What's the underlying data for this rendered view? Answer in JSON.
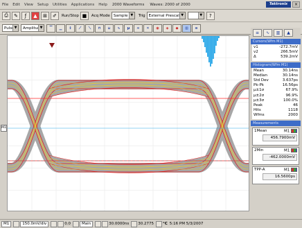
{
  "menu": {
    "items": [
      "File",
      "Edit",
      "View",
      "Setup",
      "Utilities",
      "Applications",
      "Help"
    ],
    "status": "2000 Waveforms",
    "status2": "Waves: 2000 of 2000",
    "brand": "Tektronix"
  },
  "toolbar": {
    "run_stop_label": "Run/Stop",
    "acq_mode_label": "Acq Mode",
    "acq_mode_value": "Sample",
    "trig_label": "Trig",
    "trig_value": "External Prescale",
    "pulse_value": "Pulse",
    "amplitude_value": "Amplitude"
  },
  "plot": {
    "left_label": "M1"
  },
  "cursor_panel": {
    "title": "Cursors(Wfm M1)",
    "rows": [
      {
        "label": "v1",
        "value": "-272.7mV"
      },
      {
        "label": "v2",
        "value": "266.5mV"
      },
      {
        "label": "Δ",
        "value": "539.2mV"
      }
    ]
  },
  "hist_panel": {
    "title": "Histogram(Wfm M1)",
    "rows": [
      {
        "label": "Mean",
        "value": "30.14ns"
      },
      {
        "label": "Median",
        "value": "30.14ns"
      },
      {
        "label": "Std Dev",
        "value": "3.637ps"
      },
      {
        "label": "Pk-Pk",
        "value": "16.56ps"
      },
      {
        "label": "μ±1σ",
        "value": "67.9%"
      },
      {
        "label": "μ±2σ",
        "value": "96.9%"
      },
      {
        "label": "μ±3σ",
        "value": "100.0%"
      },
      {
        "label": "Peak",
        "value": "46"
      },
      {
        "label": "Hits",
        "value": "1118"
      },
      {
        "label": "Wfms",
        "value": "2000"
      }
    ]
  },
  "meas_panel": {
    "title": "Measurements",
    "items": [
      {
        "name": "1Mean",
        "source": "M1",
        "value": "456.7900mV"
      },
      {
        "name": "2Min",
        "source": "M1",
        "value": "-462.0000mV"
      },
      {
        "name": "TPP-A",
        "source": "M1",
        "value": "16.5600ps"
      }
    ]
  },
  "statusbar": {
    "ch_label": "M1",
    "timebase": "150.0mV/div",
    "acq_left": "0.0",
    "main_label": "Main",
    "pos_label": "30.0000ns",
    "trig_pos": "30.2775",
    "temp_label": "°C",
    "time": "5:16 PM 5/3/2007"
  },
  "colors": {
    "panel_title": "#3d6cc8",
    "eye_fill": "#a7a7a7",
    "eye_edge": "#e02020",
    "cursor_line": "#ff2a2a",
    "hist_blue": "#29a7e8"
  }
}
